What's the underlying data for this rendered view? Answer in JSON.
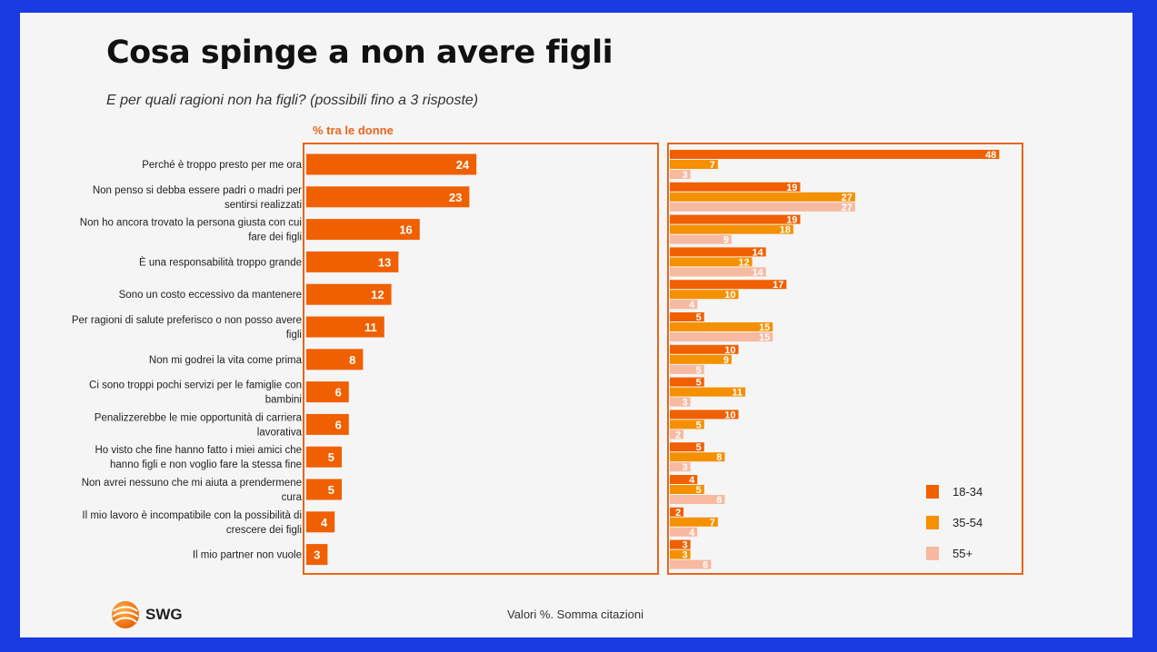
{
  "title": "Cosa spinge a non avere figli",
  "subtitle": "E per quali ragioni non ha figli? (possibili fino a 3 risposte)",
  "chart_header": "% tra le donne",
  "footer_note": "Valori %. Somma citazioni",
  "logo_text": "SWG",
  "colors": {
    "total": "#f06000",
    "g1834": "#f06000",
    "g3554": "#f59000",
    "g55": "#f7b9a0",
    "frame": "#e8661a"
  },
  "chart_data": [
    {
      "type": "bar",
      "orientation": "horizontal",
      "categories": [
        "Perché è troppo presto per me ora",
        "Non penso si debba essere padri o madri per sentirsi realizzati",
        "Non ho ancora trovato la persona giusta con cui fare dei figli",
        "È una responsabilità troppo grande",
        "Sono un costo eccessivo da mantenere",
        "Per ragioni di salute preferisco o non posso avere figli",
        "Non mi godrei la vita come prima",
        "Ci sono troppi pochi servizi per le famiglie con bambini",
        "Penalizzerebbe le mie opportunità di carriera lavorativa",
        "Ho visto che fine hanno fatto i miei amici che hanno figli e non voglio fare la stessa fine",
        "Non avrei nessuno che mi aiuta a prendermene cura",
        "Il mio lavoro è incompatibile con la possibilità di crescere dei figli",
        "Il mio partner non vuole"
      ],
      "category_lines": [
        [
          "Perché è troppo presto per me ora"
        ],
        [
          "Non penso si debba essere padri o madri per",
          "sentirsi realizzati"
        ],
        [
          "Non ho ancora trovato la persona giusta con cui",
          "fare dei figli"
        ],
        [
          "È una responsabilità troppo grande"
        ],
        [
          "Sono un costo eccessivo da mantenere"
        ],
        [
          "Per ragioni di salute preferisco o non posso avere",
          "figli"
        ],
        [
          "Non mi godrei la vita come prima"
        ],
        [
          "Ci sono troppi pochi servizi per le famiglie con",
          "bambini"
        ],
        [
          "Penalizzerebbe le mie opportunità di carriera",
          "lavorativa"
        ],
        [
          "Ho visto che fine hanno fatto i miei amici che",
          "hanno figli e non voglio fare la stessa fine"
        ],
        [
          "Non avrei nessuno che mi aiuta a prendermene",
          "cura"
        ],
        [
          "Il mio lavoro è incompatibile con la possibilità di",
          "crescere dei figli"
        ],
        [
          "Il mio partner non vuole"
        ]
      ],
      "values": [
        24,
        23,
        16,
        13,
        12,
        11,
        8,
        6,
        6,
        5,
        5,
        4,
        3
      ]
    },
    {
      "type": "bar",
      "orientation": "horizontal",
      "legend_position": "right",
      "series": [
        {
          "name": "18-34",
          "values": [
            48,
            19,
            19,
            14,
            17,
            5,
            10,
            5,
            10,
            5,
            4,
            2,
            3
          ]
        },
        {
          "name": "35-54",
          "values": [
            7,
            27,
            18,
            12,
            10,
            15,
            9,
            11,
            5,
            8,
            5,
            7,
            3
          ]
        },
        {
          "name": "55+",
          "values": [
            3,
            27,
            9,
            14,
            4,
            15,
            5,
            3,
            2,
            3,
            8,
            4,
            6
          ]
        }
      ]
    }
  ]
}
